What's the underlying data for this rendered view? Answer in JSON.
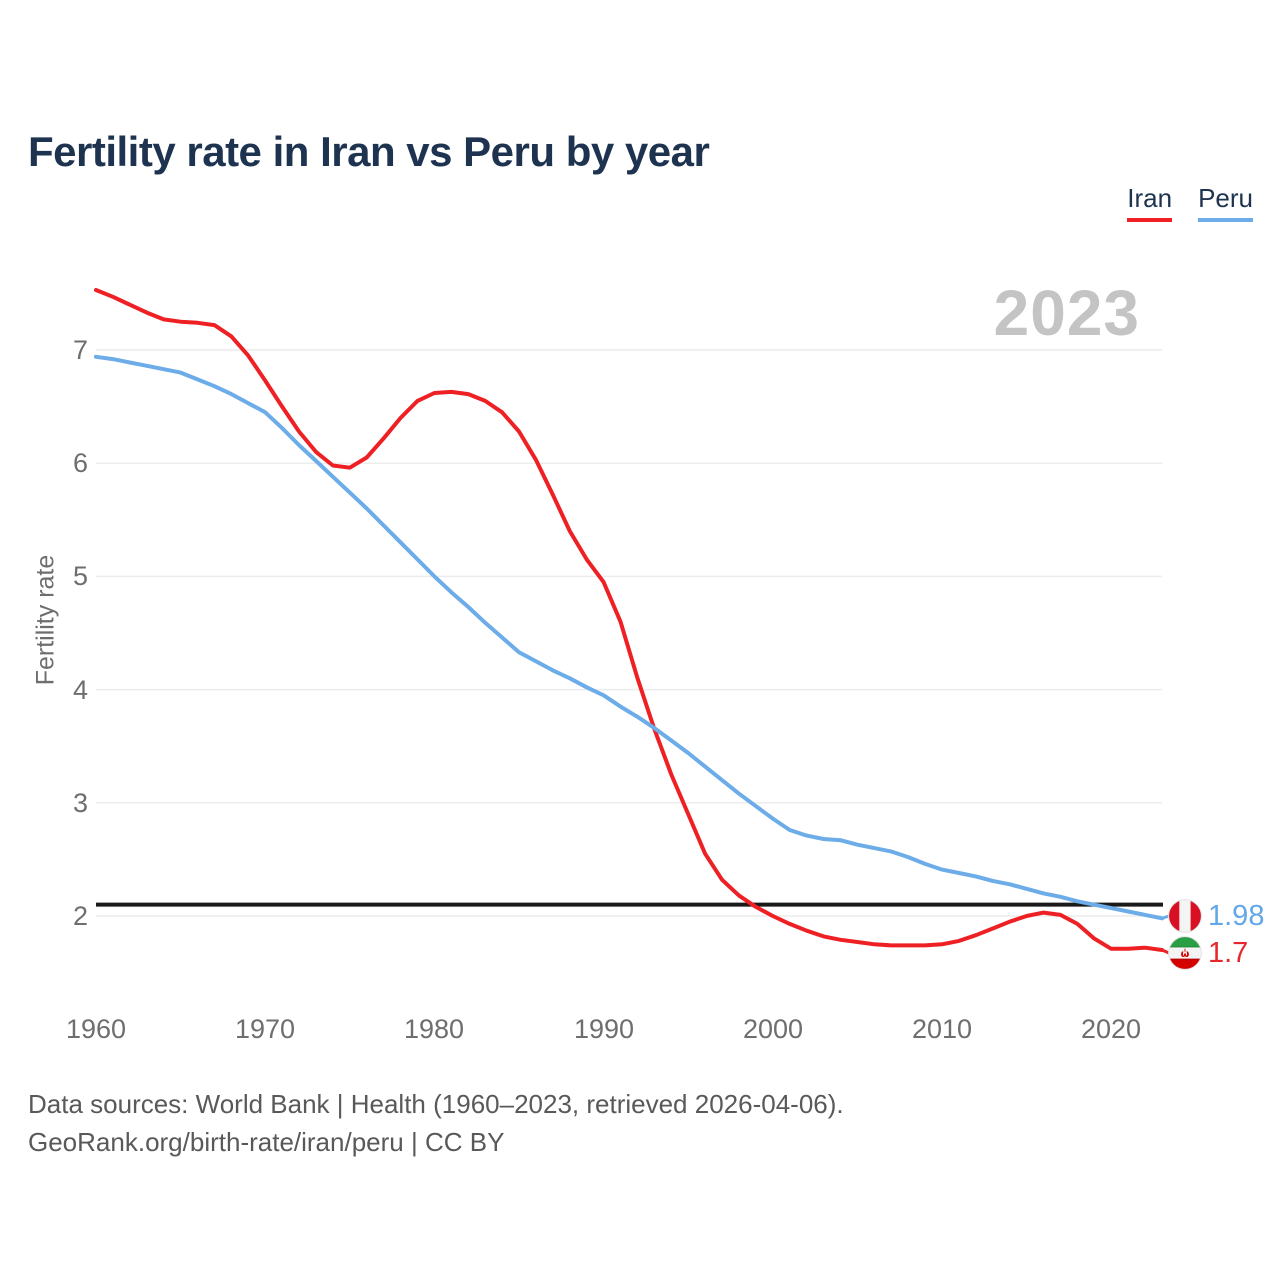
{
  "title": "Fertility rate in Iran vs Peru by year",
  "legend": {
    "items": [
      {
        "label": "Iran",
        "color": "#ee2024"
      },
      {
        "label": "Peru",
        "color": "#6cace8"
      }
    ]
  },
  "watermark": "2023",
  "y_axis": {
    "label": "Fertility rate",
    "ticks": [
      7,
      6,
      5,
      4,
      3,
      2
    ]
  },
  "x_axis": {
    "ticks": [
      1960,
      1970,
      1980,
      1990,
      2000,
      2010,
      2020
    ]
  },
  "end_labels": [
    {
      "country": "Peru",
      "value": "1.98",
      "flag": "peru-flag-icon",
      "color": "#64a7e8"
    },
    {
      "country": "Iran",
      "value": "1.7",
      "flag": "iran-flag-icon",
      "color": "#e8272b"
    }
  ],
  "footer": {
    "line1": "Data sources: World Bank | Health (1960–2023, retrieved 2026-04-06).",
    "line2": "GeoRank.org/birth-rate/iran/peru | CC BY"
  },
  "chart_data": {
    "type": "line",
    "title": "Fertility rate in Iran vs Peru by year",
    "ylabel": "Fertility rate",
    "xlabel": "",
    "xlim": [
      1960,
      2023
    ],
    "ylim": [
      1.4,
      7.6
    ],
    "grid": "horizontal",
    "legend_position": "top-right",
    "reference_line": {
      "value": 2.1,
      "color": "#1a1a1a"
    },
    "x": [
      1960,
      1961,
      1962,
      1963,
      1964,
      1965,
      1966,
      1967,
      1968,
      1969,
      1970,
      1971,
      1972,
      1973,
      1974,
      1975,
      1976,
      1977,
      1978,
      1979,
      1980,
      1981,
      1982,
      1983,
      1984,
      1985,
      1986,
      1987,
      1988,
      1989,
      1990,
      1991,
      1992,
      1993,
      1994,
      1995,
      1996,
      1997,
      1998,
      1999,
      2000,
      2001,
      2002,
      2003,
      2004,
      2005,
      2006,
      2007,
      2008,
      2009,
      2010,
      2011,
      2012,
      2013,
      2014,
      2015,
      2016,
      2017,
      2018,
      2019,
      2020,
      2021,
      2022,
      2023
    ],
    "series": [
      {
        "name": "Iran",
        "color": "#ee2024",
        "end_value": 1.7,
        "values": [
          7.53,
          7.47,
          7.4,
          7.33,
          7.27,
          7.25,
          7.24,
          7.22,
          7.12,
          6.95,
          6.73,
          6.5,
          6.28,
          6.1,
          5.98,
          5.96,
          6.05,
          6.22,
          6.4,
          6.55,
          6.62,
          6.63,
          6.61,
          6.55,
          6.45,
          6.28,
          6.03,
          5.72,
          5.4,
          5.15,
          4.95,
          4.6,
          4.1,
          3.65,
          3.25,
          2.9,
          2.55,
          2.32,
          2.18,
          2.08,
          2.0,
          1.93,
          1.87,
          1.82,
          1.79,
          1.77,
          1.75,
          1.74,
          1.74,
          1.74,
          1.75,
          1.78,
          1.83,
          1.89,
          1.95,
          2.0,
          2.03,
          2.01,
          1.93,
          1.8,
          1.71,
          1.71,
          1.72,
          1.7
        ]
      },
      {
        "name": "Peru",
        "color": "#6cace8",
        "end_value": 1.98,
        "values": [
          6.94,
          6.92,
          6.89,
          6.86,
          6.83,
          6.8,
          6.74,
          6.68,
          6.61,
          6.53,
          6.45,
          6.31,
          6.16,
          6.02,
          5.88,
          5.74,
          5.6,
          5.45,
          5.3,
          5.15,
          5.0,
          4.86,
          4.73,
          4.59,
          4.46,
          4.33,
          4.25,
          4.17,
          4.1,
          4.02,
          3.95,
          3.85,
          3.76,
          3.66,
          3.55,
          3.44,
          3.32,
          3.2,
          3.08,
          2.97,
          2.86,
          2.76,
          2.71,
          2.68,
          2.67,
          2.63,
          2.6,
          2.57,
          2.52,
          2.46,
          2.41,
          2.38,
          2.35,
          2.31,
          2.28,
          2.24,
          2.2,
          2.17,
          2.13,
          2.1,
          2.07,
          2.04,
          2.01,
          1.98
        ]
      }
    ]
  }
}
